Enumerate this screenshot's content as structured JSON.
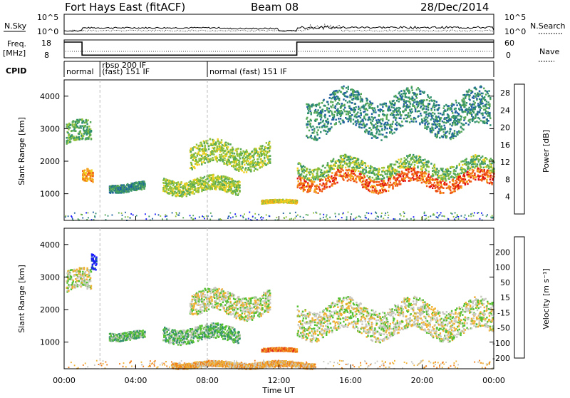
{
  "header": {
    "station": "Fort Hays East (fitACF)",
    "beam": "Beam 08",
    "date": "28/Dec/2014"
  },
  "top_panels": {
    "nsky_label": "N.Sky",
    "nsky_ticks": [
      "10^5",
      "10^0"
    ],
    "nsky_right_ticks": [
      "10^5",
      "10^0"
    ],
    "nsearch_label": "N.Search",
    "freq_label": "Freq.",
    "freq_unit": "[MHz]",
    "freq_ticks": [
      "18",
      "8"
    ],
    "nave_ticks": [
      "60",
      "0"
    ],
    "nave_label": "Nave",
    "cpid_label": "CPID",
    "cpid_segments": [
      {
        "label": "normal",
        "start_h": 0.0
      },
      {
        "label": "rbsp 200 IF",
        "label2": "(fast) 151 IF",
        "start_h": 2.0
      },
      {
        "label": "normal (fast) 151 IF",
        "start_h": 8.0
      }
    ],
    "freq_series": {
      "x": [
        0,
        1.0,
        1.0,
        13.0,
        13.0,
        24
      ],
      "y": [
        18,
        18,
        9.7,
        9.7,
        18,
        18
      ]
    }
  },
  "chart_data": [
    {
      "type": "heatmap",
      "title": "Power",
      "ylabel": "Slant Range [km]",
      "xlabel": "",
      "xlim": [
        0,
        24
      ],
      "ylim": [
        180,
        4500
      ],
      "yticks": [
        1000,
        2000,
        3000,
        4000
      ],
      "colorbar_label": "Power [dB]",
      "colorbar_ticks": [
        4,
        8,
        12,
        16,
        20,
        24,
        28
      ],
      "colorbar_range": [
        0,
        30
      ],
      "colors": [
        "#1a1aff",
        "#1f5fa0",
        "#2f8f6f",
        "#55a855",
        "#8fc23a",
        "#f0d020",
        "#f4a21a",
        "#f05a14",
        "#e01010"
      ],
      "features": [
        {
          "name": "early-band",
          "x": [
            0.1,
            1.5
          ],
          "y": [
            2400,
            3300
          ],
          "level": 3
        },
        {
          "name": "early-low",
          "x": [
            1.0,
            1.6
          ],
          "y": [
            1250,
            1800
          ],
          "level": 6
        },
        {
          "name": "band-a",
          "x": [
            2.5,
            4.5
          ],
          "y": [
            1050,
            1400
          ],
          "level": 2
        },
        {
          "name": "band-b",
          "x": [
            5.5,
            9.8
          ],
          "y": [
            950,
            1600
          ],
          "level": 4
        },
        {
          "name": "band-c",
          "x": [
            7.0,
            11.5
          ],
          "y": [
            1700,
            2700
          ],
          "level": 4
        },
        {
          "name": "band-d",
          "x": [
            11.0,
            13.0
          ],
          "y": [
            700,
            850
          ],
          "level": 5
        },
        {
          "name": "main-arc",
          "x": [
            13.0,
            24.0
          ],
          "y": [
            1050,
            2200
          ],
          "level": 7
        },
        {
          "name": "upper-patches",
          "x": [
            13.5,
            23.8
          ],
          "y": [
            2700,
            4300
          ],
          "level": 2
        }
      ]
    },
    {
      "type": "heatmap",
      "title": "Velocity",
      "ylabel": "Slant Range [km]",
      "xlabel": "Time UT",
      "xlim": [
        0,
        24
      ],
      "ylim": [
        180,
        4500
      ],
      "yticks": [
        1000,
        2000,
        3000,
        4000
      ],
      "xticks": [
        "00:00",
        "04:00",
        "08:00",
        "12:00",
        "16:00",
        "20:00",
        "00:00"
      ],
      "colorbar_label": "Velocity [m s⁻¹]",
      "colorbar_ticks": [
        "200",
        "100",
        "50",
        "15",
        "-15",
        "-50",
        "-100",
        "-200"
      ],
      "colors": [
        "#1a1aff",
        "#1f5fa0",
        "#2f8f6f",
        "#55c030",
        "#c8c8c0",
        "#f0b030",
        "#f07a14",
        "#e02020"
      ],
      "features": [
        {
          "name": "early-band",
          "x": [
            0.1,
            1.5
          ],
          "y": [
            2400,
            3300
          ],
          "level": 4
        },
        {
          "name": "blue-streak",
          "x": [
            1.5,
            1.8
          ],
          "y": [
            3100,
            3800
          ],
          "level": 0
        },
        {
          "name": "band-a",
          "x": [
            2.5,
            4.5
          ],
          "y": [
            1050,
            1400
          ],
          "level": 3
        },
        {
          "name": "band-b",
          "x": [
            5.5,
            9.8
          ],
          "y": [
            950,
            1600
          ],
          "level": 3
        },
        {
          "name": "band-c",
          "x": [
            7.0,
            11.5
          ],
          "y": [
            1700,
            2700
          ],
          "level": 4
        },
        {
          "name": "band-d",
          "x": [
            11.0,
            13.0
          ],
          "y": [
            700,
            850
          ],
          "level": 6
        },
        {
          "name": "main-arc",
          "x": [
            13.0,
            24.0
          ],
          "y": [
            1050,
            2400
          ],
          "level": 4
        },
        {
          "name": "low-orange",
          "x": [
            6.0,
            14.0
          ],
          "y": [
            200,
            450
          ],
          "level": 5
        }
      ]
    }
  ]
}
